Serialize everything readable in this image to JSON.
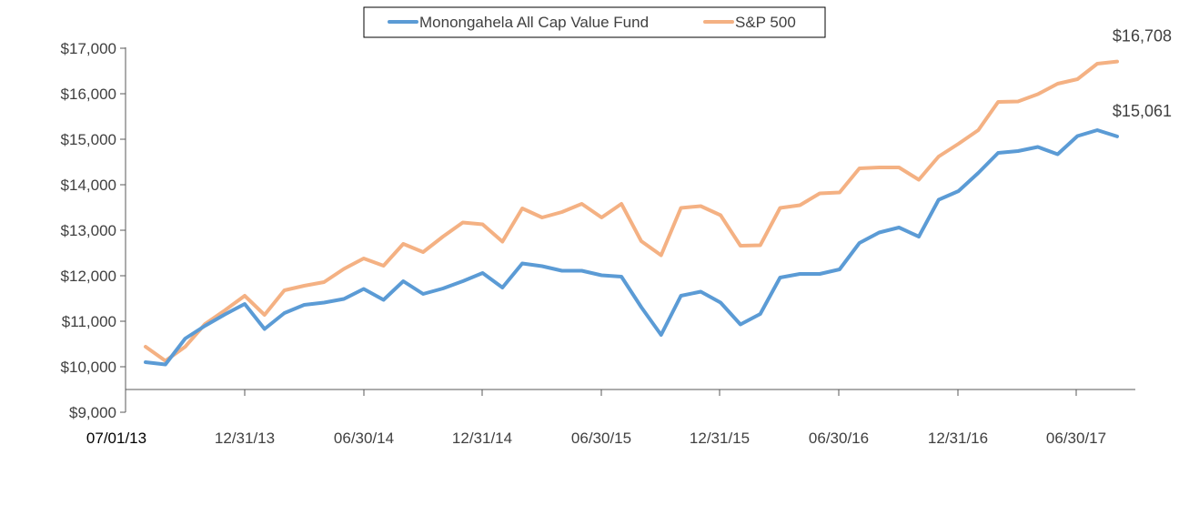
{
  "chart_data": {
    "type": "line",
    "title": "",
    "xlabel": "",
    "ylabel": "",
    "ylim": [
      9000,
      17000
    ],
    "y_ticks": [
      9000,
      10000,
      11000,
      12000,
      13000,
      14000,
      15000,
      16000,
      17000
    ],
    "y_tick_labels": [
      "$9,000",
      "$10,000",
      "$11,000",
      "$12,000",
      "$13,000",
      "$14,000",
      "$15,000",
      "$16,000",
      "$17,000"
    ],
    "x_tick_labels": [
      "07/01/13",
      "12/31/13",
      "06/30/14",
      "12/31/14",
      "06/30/15",
      "12/31/15",
      "06/30/16",
      "12/31/16",
      "06/30/17"
    ],
    "grid": false,
    "legend_position": "top-center",
    "series": [
      {
        "name": "Monongahela All Cap Value Fund",
        "color": "#5B9BD5",
        "end_label": "$15,061",
        "values": [
          10100,
          10050,
          10620,
          10900,
          11150,
          11380,
          10830,
          11180,
          11360,
          11410,
          11490,
          11710,
          11470,
          11880,
          11600,
          11720,
          11880,
          12060,
          11740,
          12270,
          12210,
          12110,
          12110,
          12010,
          11980,
          11310,
          10700,
          11560,
          11650,
          11410,
          10930,
          11160,
          11960,
          12040,
          12040,
          12140,
          12720,
          12950,
          13060,
          12860,
          13670,
          13860,
          14260,
          14700,
          14740,
          14830,
          14670,
          15070,
          15200,
          15061
        ]
      },
      {
        "name": "S&P 500",
        "color": "#F4B183",
        "end_label": "$16,708",
        "values": [
          10440,
          10130,
          10440,
          10940,
          11240,
          11560,
          11140,
          11680,
          11780,
          11860,
          12150,
          12380,
          12220,
          12700,
          12520,
          12860,
          13170,
          13130,
          12750,
          13480,
          13280,
          13400,
          13580,
          13280,
          13580,
          12760,
          12450,
          13490,
          13530,
          13330,
          12660,
          12670,
          13490,
          13550,
          13810,
          13830,
          14360,
          14380,
          14380,
          14110,
          14620,
          14900,
          15200,
          15820,
          15830,
          15990,
          16220,
          16320,
          16660,
          16708
        ]
      }
    ]
  }
}
